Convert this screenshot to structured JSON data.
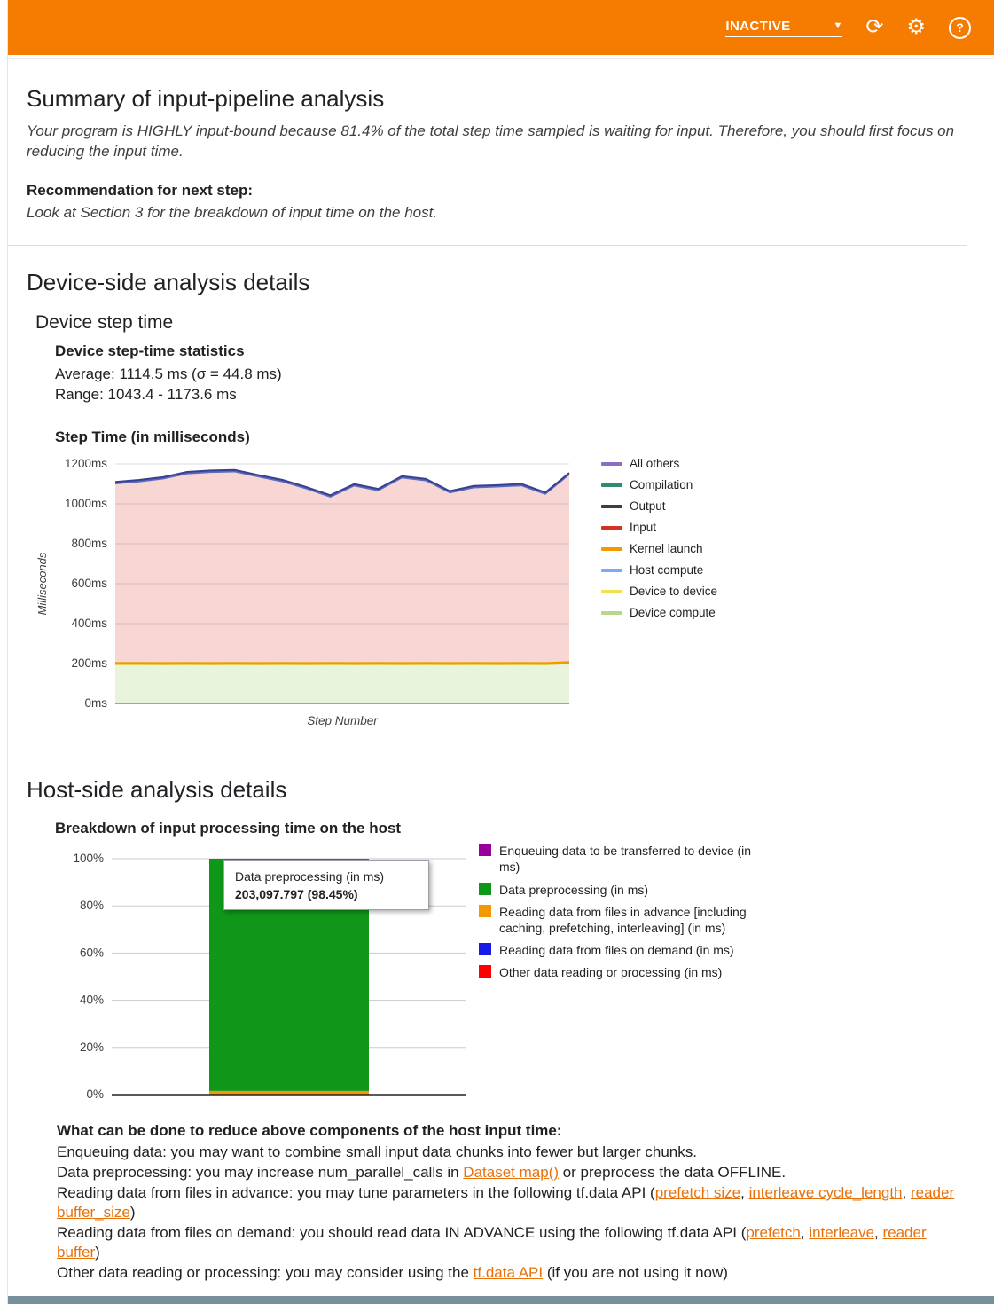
{
  "toolbar": {
    "status": "INACTIVE",
    "icons": {
      "refresh": "refresh-icon",
      "settings": "gear-icon",
      "help": "help-icon"
    }
  },
  "summary": {
    "title": "Summary of input-pipeline analysis",
    "body": "Your program is HIGHLY input-bound because 81.4% of the total step time sampled is waiting for input. Therefore, you should first focus on reducing the input time.",
    "recommendation_title": "Recommendation for next step:",
    "recommendation_body": "Look at Section 3 for the breakdown of input time on the host."
  },
  "device": {
    "title": "Device-side analysis details",
    "subtitle": "Device step time",
    "stats_title": "Device step-time statistics",
    "average": "Average: 1114.5 ms (σ = 44.8 ms)",
    "range": "Range: 1043.4 - 1173.6 ms"
  },
  "host": {
    "title": "Host-side analysis details"
  },
  "chart_data": [
    {
      "type": "area",
      "title": "Step Time (in milliseconds)",
      "xlabel": "Step Number",
      "ylabel": "Milliseconds",
      "ylim": [
        0,
        1200
      ],
      "ytick_values": [
        0,
        200,
        400,
        600,
        800,
        1000,
        1200
      ],
      "ytick_labels": [
        "0ms",
        "200ms",
        "400ms",
        "600ms",
        "800ms",
        "1000ms",
        "1200ms"
      ],
      "grid": true,
      "legend_position": "right",
      "stack": [
        {
          "name": "Device compute",
          "fill": "#9ccc65",
          "fill_opacity": 0.22,
          "line": "#e3c62e",
          "lw": 1.6,
          "values": [
            196,
            196,
            195,
            196,
            195,
            196,
            195,
            196,
            195,
            196,
            195,
            196,
            195,
            196,
            195,
            196,
            195,
            196,
            195,
            200
          ]
        },
        {
          "name": "Kernel launch",
          "fill": "#f29900",
          "fill_opacity": 1,
          "line": "",
          "lw": 0,
          "values": [
            12,
            12,
            12,
            12,
            12,
            12,
            12,
            12,
            12,
            12,
            12,
            12,
            12,
            12,
            12,
            12,
            12,
            12,
            12,
            12
          ]
        },
        {
          "name": "Input",
          "fill": "#d93025",
          "fill_opacity": 0.2,
          "line": "",
          "lw": 0,
          "values": [
            890,
            900,
            915,
            940,
            948,
            950,
            925,
            900,
            865,
            823,
            880,
            855,
            920,
            905,
            845,
            870,
            875,
            880,
            838,
            931
          ]
        },
        {
          "name": "All others",
          "fill": "#5c6bc0",
          "fill_opacity": 1,
          "line": "#39418f",
          "lw": 2,
          "values": [
            12,
            12,
            12,
            12,
            12,
            12,
            12,
            12,
            12,
            12,
            12,
            12,
            12,
            12,
            12,
            12,
            12,
            12,
            12,
            12
          ]
        }
      ],
      "legend": [
        {
          "label": "All others",
          "color": "#8e6cc1"
        },
        {
          "label": "Compilation",
          "color": "#2e8b74"
        },
        {
          "label": "Output",
          "color": "#3c4043"
        },
        {
          "label": "Input",
          "color": "#d93025"
        },
        {
          "label": "Kernel launch",
          "color": "#f29900"
        },
        {
          "label": "Host compute",
          "color": "#7baaf7"
        },
        {
          "label": "Device to device",
          "color": "#f3e14b"
        },
        {
          "label": "Device compute",
          "color": "#b7d78c"
        }
      ]
    },
    {
      "type": "bar",
      "title": "Breakdown of input processing time on the host",
      "ylim": [
        0,
        100
      ],
      "ytick_values": [
        0,
        20,
        40,
        60,
        80,
        100
      ],
      "ytick_labels": [
        "0%",
        "20%",
        "40%",
        "60%",
        "80%",
        "100%"
      ],
      "grid": true,
      "legend_position": "right",
      "bar_segments": [
        {
          "label": "Reading data from files in advance [including caching, prefetching, interleaving] (in ms)",
          "color": "#f29900",
          "pct": 1.55
        },
        {
          "label": "Data preprocessing (in ms)",
          "color": "#109618",
          "pct": 98.45
        }
      ],
      "tooltip": {
        "title": "Data preprocessing (in ms)",
        "value": "203,097.797 (98.45%)"
      },
      "legend": [
        {
          "label": "Enqueuing data to be transferred to device (in ms)",
          "color": "#990099"
        },
        {
          "label": "Data preprocessing (in ms)",
          "color": "#109618"
        },
        {
          "label": "Reading data from files in advance [including caching, prefetching, interleaving] (in ms)",
          "color": "#f29900"
        },
        {
          "label": "Reading data from files on demand (in ms)",
          "color": "#1a1ae6"
        },
        {
          "label": "Other data reading or processing (in ms)",
          "color": "#ff0000"
        }
      ]
    }
  ],
  "tips": {
    "heading": "What can be done to reduce above components of the host input time:",
    "lines": [
      [
        {
          "t": "Enqueuing data: you may want to combine small input data chunks into fewer but larger chunks."
        }
      ],
      [
        {
          "t": "Data preprocessing: you may increase num_parallel_calls in "
        },
        {
          "t": "Dataset map()",
          "link": true
        },
        {
          "t": " or preprocess the data OFFLINE."
        }
      ],
      [
        {
          "t": "Reading data from files in advance: you may tune parameters in the following tf.data API ("
        },
        {
          "t": "prefetch size",
          "link": true
        },
        {
          "t": ", "
        },
        {
          "t": "interleave cycle_length",
          "link": true
        },
        {
          "t": ", "
        },
        {
          "t": "reader buffer_size",
          "link": true
        },
        {
          "t": ")"
        }
      ],
      [
        {
          "t": "Reading data from files on demand: you should read data IN ADVANCE using the following tf.data API ("
        },
        {
          "t": "prefetch",
          "link": true
        },
        {
          "t": ", "
        },
        {
          "t": "interleave",
          "link": true
        },
        {
          "t": ", "
        },
        {
          "t": "reader buffer",
          "link": true
        },
        {
          "t": ")"
        }
      ],
      [
        {
          "t": "Other data reading or processing: you may consider using the "
        },
        {
          "t": "tf.data API",
          "link": true
        },
        {
          "t": " (if you are not using it now)"
        }
      ]
    ]
  }
}
